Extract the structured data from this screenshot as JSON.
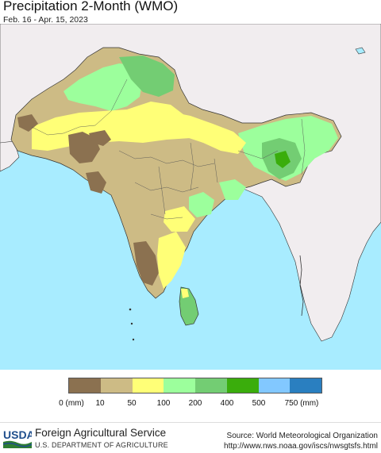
{
  "header": {
    "title": "Precipitation 2-Month (WMO)",
    "date_range": "Feb. 16 - Apr. 15, 2023"
  },
  "legend": {
    "colors": [
      "#8b7150",
      "#cdbb85",
      "#ffff77",
      "#9cff9c",
      "#73cd73",
      "#3aad0c",
      "#82c8ff",
      "#2a7fc0"
    ],
    "labels": [
      "0 (mm)",
      "10",
      "50",
      "100",
      "200",
      "400",
      "500",
      "750 (mm)"
    ]
  },
  "map": {
    "ocean_color": "#a8ecff",
    "land_outside_color": "#f1edef",
    "border_color": "#333333",
    "no_data_note": ""
  },
  "footer": {
    "usda_logo": "USDA",
    "agency": "Foreign Agricultural Service",
    "department": "U.S. DEPARTMENT OF AGRICULTURE",
    "source": "Source: World Meteorological Organization",
    "source_url": "http://www.nws.noaa.gov/iscs/nwsgtsfs.html"
  }
}
